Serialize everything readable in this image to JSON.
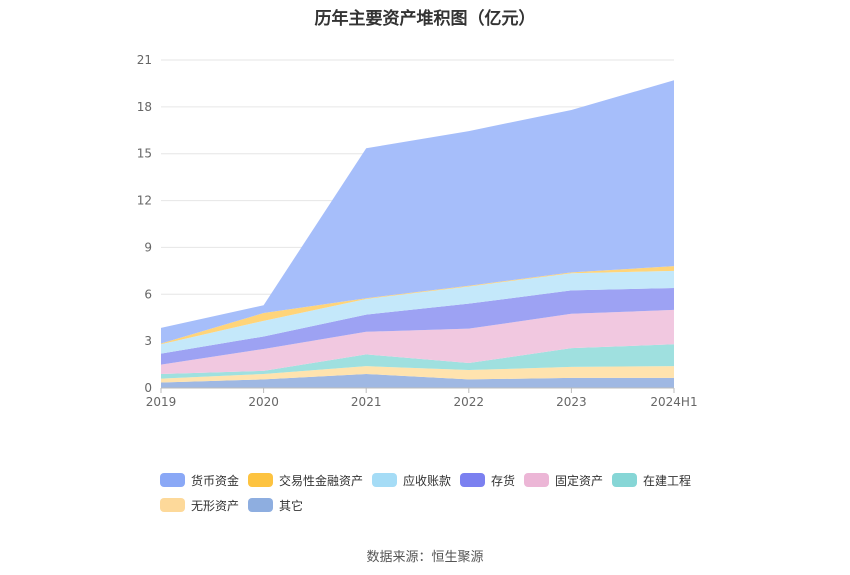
{
  "title": "历年主要资产堆积图（亿元）",
  "source": "数据来源：恒生聚源",
  "chart_data": {
    "type": "area",
    "stacked": true,
    "categories": [
      "2019",
      "2020",
      "2021",
      "2022",
      "2023",
      "2024H1"
    ],
    "ylim": [
      0,
      21
    ],
    "yticks": [
      0,
      3,
      6,
      9,
      12,
      15,
      18,
      21
    ],
    "grid": true,
    "legend_position": "bottom",
    "series": [
      {
        "name": "其它",
        "color": "#9fb8e3",
        "values": [
          0.35,
          0.55,
          0.9,
          0.55,
          0.65,
          0.65
        ]
      },
      {
        "name": "无形资产",
        "color": "#ffe3ae",
        "values": [
          0.25,
          0.35,
          0.5,
          0.6,
          0.7,
          0.75
        ]
      },
      {
        "name": "在建工程",
        "color": "#9fe0df",
        "values": [
          0.3,
          0.2,
          0.75,
          0.45,
          1.2,
          1.4
        ]
      },
      {
        "name": "固定资产",
        "color": "#f1c8e0",
        "values": [
          0.6,
          1.4,
          1.45,
          2.2,
          2.2,
          2.2
        ]
      },
      {
        "name": "存货",
        "color": "#9da2f3",
        "values": [
          0.7,
          0.8,
          1.1,
          1.6,
          1.5,
          1.4
        ]
      },
      {
        "name": "应收账款",
        "color": "#c4e8fa",
        "values": [
          0.6,
          1.0,
          1.0,
          1.1,
          1.1,
          1.1
        ]
      },
      {
        "name": "交易性金融资产",
        "color": "#ffd479",
        "values": [
          0.05,
          0.5,
          0.05,
          0.05,
          0.05,
          0.3
        ]
      },
      {
        "name": "货币资金",
        "color": "#a6befa",
        "values": [
          1.0,
          0.5,
          9.6,
          9.9,
          10.4,
          11.9
        ]
      }
    ],
    "legend": [
      {
        "name": "货币资金",
        "color": "#8aa8f6"
      },
      {
        "name": "交易性金融资产",
        "color": "#fdc340"
      },
      {
        "name": "应收账款",
        "color": "#a5dcf6"
      },
      {
        "name": "存货",
        "color": "#7b80f0"
      },
      {
        "name": "固定资产",
        "color": "#ecb6d6"
      },
      {
        "name": "在建工程",
        "color": "#86d6d6"
      },
      {
        "name": "无形资产",
        "color": "#fdd99a"
      },
      {
        "name": "其它",
        "color": "#8eaee0"
      }
    ]
  }
}
